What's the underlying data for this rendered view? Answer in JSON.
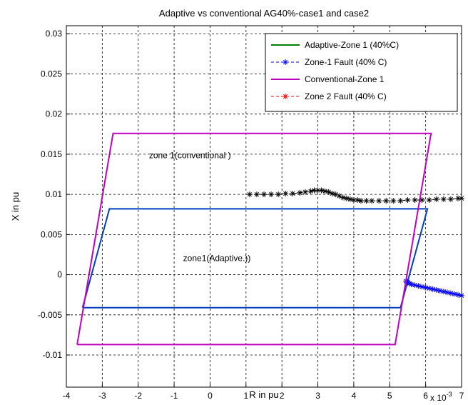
{
  "chart_data": {
    "type": "line",
    "title": "Adaptive vs conventional AG40%-case1 and case2",
    "xlabel": "R in pu",
    "ylabel": "X in pu",
    "x_multiplier": "x 10",
    "x_multiplier_exp": "-3",
    "xlim": [
      -4,
      7
    ],
    "ylim": [
      -0.014,
      0.031
    ],
    "xticks": [
      -4,
      -3,
      -2,
      -1,
      0,
      1,
      2,
      3,
      4,
      5,
      6,
      7
    ],
    "xtick_labels": [
      "-4",
      "-3",
      "-2",
      "-1",
      "0",
      "1",
      "2",
      "3",
      "4",
      "5",
      "6",
      "7"
    ],
    "yticks": [
      -0.01,
      -0.005,
      0,
      0.005,
      0.01,
      0.015,
      0.02,
      0.025,
      0.03
    ],
    "ytick_labels": [
      "-0.01",
      "-0.005",
      "0",
      "0.005",
      "0.01",
      "0.015",
      "0.02",
      "0.025",
      "0.03"
    ],
    "grid": true,
    "legend_position": "top-right",
    "annotations": [
      {
        "text": "zone 1(conventional )",
        "x": -1.7,
        "y": 0.0145
      },
      {
        "text": "zone1(Adaptive.))",
        "x": -0.75,
        "y": 0.0017
      }
    ],
    "series": [
      {
        "name": "Adaptive-Zone 1 (40%C)",
        "color": "#003fbf",
        "legend_color": "#008000",
        "style": "solid",
        "marker": "none",
        "x": [
          -3.55,
          5.3,
          6.05,
          -2.8,
          -3.55
        ],
        "y": [
          -0.0041,
          -0.0041,
          0.0082,
          0.0082,
          -0.0041
        ]
      },
      {
        "name": "Zone-1 Fault (40% C)",
        "color": "#0000ff",
        "style": "dashed",
        "marker": "*",
        "x": [
          5.45,
          5.5,
          5.55,
          5.6,
          5.7,
          5.8,
          5.9,
          6.0,
          6.1,
          6.2,
          6.3,
          6.4,
          6.5,
          6.6,
          6.7,
          6.8,
          6.9,
          7.0
        ],
        "y": [
          -0.0008,
          -0.0009,
          -0.0011,
          -0.0012,
          -0.0013,
          -0.0014,
          -0.0015,
          -0.0016,
          -0.0017,
          -0.0018,
          -0.0019,
          -0.002,
          -0.0021,
          -0.0022,
          -0.0023,
          -0.0024,
          -0.0025,
          -0.0026
        ]
      },
      {
        "name": "Conventional-Zone 1",
        "color": "#bf00bf",
        "style": "solid",
        "marker": "none",
        "x": [
          -3.7,
          5.15,
          6.15,
          -2.7,
          -3.7
        ],
        "y": [
          -0.0087,
          -0.0087,
          0.0176,
          0.0176,
          -0.0087
        ]
      },
      {
        "name": "Zone 2 Fault (40% C)",
        "color": "#000000",
        "legend_color": "#ff0000",
        "style": "dashed",
        "marker": "*",
        "x": [
          1.1,
          1.3,
          1.5,
          1.7,
          1.9,
          2.1,
          2.3,
          2.5,
          2.65,
          2.8,
          2.9,
          3.0,
          3.1,
          3.2,
          3.3,
          3.4,
          3.5,
          3.6,
          3.7,
          3.8,
          3.9,
          4.0,
          4.1,
          4.2,
          4.35,
          4.5,
          4.7,
          4.9,
          5.1,
          5.3,
          5.5,
          5.7,
          5.9,
          6.1,
          6.3,
          6.5,
          6.7,
          6.9,
          7.0
        ],
        "y": [
          0.01,
          0.01,
          0.01,
          0.01,
          0.01,
          0.0101,
          0.0101,
          0.0102,
          0.0103,
          0.0104,
          0.0105,
          0.0105,
          0.0105,
          0.0104,
          0.0103,
          0.0101,
          0.01,
          0.0098,
          0.0096,
          0.0095,
          0.0094,
          0.0093,
          0.0093,
          0.0092,
          0.0092,
          0.0092,
          0.0092,
          0.0092,
          0.0092,
          0.0092,
          0.0093,
          0.0093,
          0.0093,
          0.0093,
          0.0094,
          0.0094,
          0.0094,
          0.0095,
          0.0095
        ]
      }
    ]
  }
}
